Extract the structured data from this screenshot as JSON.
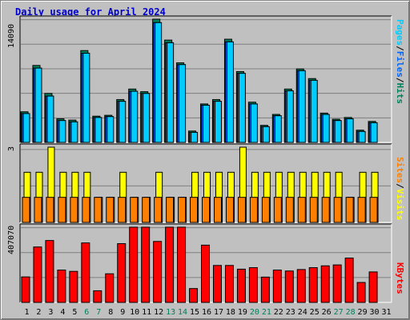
{
  "title": "Daily usage for April 2024",
  "colors": {
    "pages": "#00ccff",
    "files": "#0066ff",
    "hits": "#00805c",
    "sites": "#ff8000",
    "visits": "#ffff00",
    "kbytes": "#ff0000",
    "weekend_day": "#00805c",
    "weekday": "#000000",
    "panel_bg": "#c0c0c0"
  },
  "right_legend": {
    "top": [
      "Pages",
      "Files",
      "Hits"
    ],
    "mid": [
      "Sites",
      "Visits"
    ],
    "bottom": [
      "KBytes"
    ],
    "separator": "/"
  },
  "chart_data": {
    "type": "bar",
    "days": [
      1,
      2,
      3,
      4,
      5,
      6,
      7,
      8,
      9,
      10,
      11,
      12,
      13,
      14,
      15,
      16,
      17,
      18,
      19,
      20,
      21,
      22,
      23,
      24,
      25,
      26,
      27,
      28,
      29,
      30,
      31
    ],
    "weekend_days": [
      6,
      7,
      13,
      14,
      20,
      21,
      27,
      28
    ],
    "panels": [
      {
        "id": "top",
        "ymax_label": "14090",
        "ymax": 14090,
        "series": [
          {
            "name": "Hits",
            "values": [
              3500,
              8800,
              5600,
              2700,
              2550,
              10500,
              3000,
              3100,
              4900,
              6100,
              5800,
              14090,
              11700,
              9100,
              1300,
              4400,
              4900,
              11800,
              8100,
              4600,
              1950,
              3200,
              6100,
              8400,
              7300,
              3350,
              2650,
              2850,
              1400,
              2400,
              0
            ]
          },
          {
            "name": "Files",
            "values": [
              3300,
              8500,
              5300,
              2500,
              2350,
              10200,
              2850,
              2950,
              4700,
              5850,
              5600,
              13700,
              11400,
              8900,
              1150,
              4250,
              4700,
              11500,
              7900,
              4400,
              1800,
              3050,
              5900,
              8200,
              7100,
              3200,
              2500,
              2700,
              1250,
              2250,
              0
            ]
          },
          {
            "name": "Pages",
            "values": [
              3300,
              8500,
              5300,
              2500,
              2350,
              10200,
              2850,
              2950,
              4700,
              5850,
              5600,
              13700,
              11400,
              8900,
              1150,
              4250,
              4700,
              11500,
              7900,
              4400,
              1800,
              3050,
              5900,
              8200,
              7100,
              3200,
              2500,
              2700,
              1250,
              2250,
              0
            ]
          }
        ]
      },
      {
        "id": "mid",
        "ymax_label": "3",
        "ymax": 3,
        "series": [
          {
            "name": "Visits",
            "values": [
              2,
              2,
              3,
              2,
              2,
              2,
              1,
              1,
              2,
              1,
              1,
              2,
              1,
              1,
              2,
              2,
              2,
              2,
              3,
              2,
              2,
              2,
              2,
              2,
              2,
              2,
              2,
              1,
              2,
              2,
              0
            ]
          },
          {
            "name": "Sites",
            "values": [
              1,
              1,
              1,
              1,
              1,
              1,
              1,
              1,
              1,
              1,
              1,
              1,
              1,
              1,
              1,
              1,
              1,
              1,
              1,
              1,
              1,
              1,
              1,
              1,
              1,
              1,
              1,
              1,
              1,
              1,
              0
            ]
          }
        ]
      },
      {
        "id": "bottom",
        "ymax_label": "407070",
        "ymax": 407070,
        "series": [
          {
            "name": "KBytes",
            "values": [
              138000,
              300000,
              335000,
              175000,
              168000,
              322000,
              63000,
              155000,
              318000,
              407070,
              407070,
              330000,
              407070,
              407070,
              75000,
              310000,
              200000,
              200000,
              180000,
              188000,
              137000,
              175000,
              170000,
              178000,
              188000,
              198000,
              203000,
              240000,
              108000,
              165000,
              0
            ]
          }
        ]
      }
    ]
  }
}
